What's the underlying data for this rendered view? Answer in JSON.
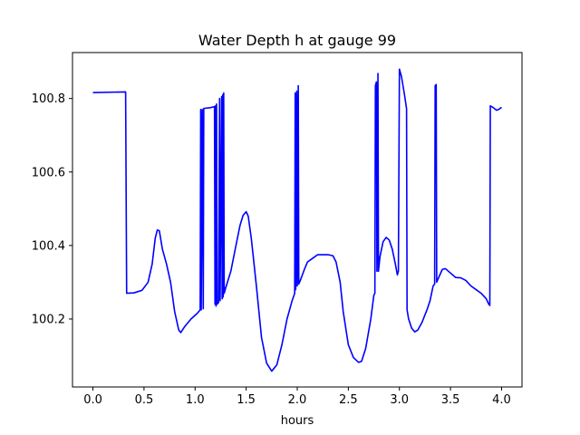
{
  "chart_data": {
    "type": "line",
    "title": "Water Depth h at gauge 99",
    "xlabel": "hours",
    "ylabel": "",
    "xlim": [
      -0.2,
      4.2
    ],
    "ylim": [
      100.015,
      100.925
    ],
    "grid": false,
    "xticks": [
      0.0,
      0.5,
      1.0,
      1.5,
      2.0,
      2.5,
      3.0,
      3.5,
      4.0
    ],
    "xtick_labels": [
      "0.0",
      "0.5",
      "1.0",
      "1.5",
      "2.0",
      "2.5",
      "3.0",
      "3.5",
      "4.0"
    ],
    "yticks": [
      100.2,
      100.4,
      100.6,
      100.8
    ],
    "ytick_labels": [
      "100.2",
      "100.4",
      "100.6",
      "100.8"
    ],
    "line_color": "#0000ff",
    "series": [
      {
        "points": [
          [
            0.0,
            100.816
          ],
          [
            0.32,
            100.818
          ],
          [
            0.32,
            100.818
          ],
          [
            0.33,
            100.27
          ],
          [
            0.4,
            100.271
          ],
          [
            0.48,
            100.278
          ],
          [
            0.54,
            100.3
          ],
          [
            0.58,
            100.35
          ],
          [
            0.61,
            100.42
          ],
          [
            0.63,
            100.442
          ],
          [
            0.65,
            100.44
          ],
          [
            0.68,
            100.39
          ],
          [
            0.72,
            100.35
          ],
          [
            0.76,
            100.3
          ],
          [
            0.8,
            100.22
          ],
          [
            0.84,
            100.17
          ],
          [
            0.86,
            100.163
          ],
          [
            0.9,
            100.18
          ],
          [
            0.96,
            100.2
          ],
          [
            1.02,
            100.215
          ],
          [
            1.05,
            100.225
          ],
          [
            1.055,
            100.77
          ],
          [
            1.06,
            100.225
          ],
          [
            1.07,
            100.77
          ],
          [
            1.08,
            100.228
          ],
          [
            1.085,
            100.773
          ],
          [
            1.15,
            100.775
          ],
          [
            1.19,
            100.778
          ],
          [
            1.195,
            100.24
          ],
          [
            1.2,
            100.78
          ],
          [
            1.205,
            100.235
          ],
          [
            1.21,
            100.785
          ],
          [
            1.215,
            100.24
          ],
          [
            1.23,
            100.245
          ],
          [
            1.24,
            100.8
          ],
          [
            1.245,
            100.25
          ],
          [
            1.26,
            100.805
          ],
          [
            1.265,
            100.255
          ],
          [
            1.27,
            100.81
          ],
          [
            1.275,
            100.26
          ],
          [
            1.28,
            100.815
          ],
          [
            1.285,
            100.27
          ],
          [
            1.3,
            100.285
          ],
          [
            1.35,
            100.33
          ],
          [
            1.4,
            100.4
          ],
          [
            1.44,
            100.455
          ],
          [
            1.47,
            100.482
          ],
          [
            1.5,
            100.492
          ],
          [
            1.52,
            100.48
          ],
          [
            1.55,
            100.42
          ],
          [
            1.6,
            100.29
          ],
          [
            1.65,
            100.15
          ],
          [
            1.7,
            100.08
          ],
          [
            1.75,
            100.058
          ],
          [
            1.8,
            100.075
          ],
          [
            1.85,
            100.13
          ],
          [
            1.9,
            100.2
          ],
          [
            1.95,
            100.25
          ],
          [
            1.975,
            100.27
          ],
          [
            1.98,
            100.815
          ],
          [
            1.985,
            100.28
          ],
          [
            1.995,
            100.82
          ],
          [
            2.0,
            100.29
          ],
          [
            2.01,
            100.835
          ],
          [
            2.015,
            100.295
          ],
          [
            2.03,
            100.305
          ],
          [
            2.07,
            100.335
          ],
          [
            2.1,
            100.355
          ],
          [
            2.15,
            100.365
          ],
          [
            2.2,
            100.375
          ],
          [
            2.3,
            100.375
          ],
          [
            2.35,
            100.372
          ],
          [
            2.38,
            100.355
          ],
          [
            2.42,
            100.3
          ],
          [
            2.45,
            100.22
          ],
          [
            2.5,
            100.13
          ],
          [
            2.55,
            100.095
          ],
          [
            2.6,
            100.082
          ],
          [
            2.63,
            100.085
          ],
          [
            2.67,
            100.12
          ],
          [
            2.72,
            100.2
          ],
          [
            2.75,
            100.265
          ],
          [
            2.76,
            100.27
          ],
          [
            2.765,
            100.835
          ],
          [
            2.775,
            100.845
          ],
          [
            2.78,
            100.33
          ],
          [
            2.79,
            100.868
          ],
          [
            2.795,
            100.33
          ],
          [
            2.81,
            100.37
          ],
          [
            2.84,
            100.41
          ],
          [
            2.87,
            100.422
          ],
          [
            2.9,
            100.415
          ],
          [
            2.93,
            100.39
          ],
          [
            2.96,
            100.35
          ],
          [
            2.98,
            100.32
          ],
          [
            2.99,
            100.33
          ],
          [
            3.0,
            100.88
          ],
          [
            3.02,
            100.86
          ],
          [
            3.05,
            100.81
          ],
          [
            3.07,
            100.772
          ],
          [
            3.075,
            100.225
          ],
          [
            3.09,
            100.2
          ],
          [
            3.12,
            100.175
          ],
          [
            3.15,
            100.165
          ],
          [
            3.18,
            100.17
          ],
          [
            3.22,
            100.19
          ],
          [
            3.27,
            100.225
          ],
          [
            3.3,
            100.25
          ],
          [
            3.33,
            100.29
          ],
          [
            3.345,
            100.295
          ],
          [
            3.35,
            100.835
          ],
          [
            3.36,
            100.838
          ],
          [
            3.365,
            100.3
          ],
          [
            3.38,
            100.31
          ],
          [
            3.42,
            100.335
          ],
          [
            3.45,
            100.337
          ],
          [
            3.5,
            100.325
          ],
          [
            3.55,
            100.313
          ],
          [
            3.6,
            100.312
          ],
          [
            3.65,
            100.305
          ],
          [
            3.7,
            100.29
          ],
          [
            3.75,
            100.28
          ],
          [
            3.8,
            100.27
          ],
          [
            3.85,
            100.255
          ],
          [
            3.875,
            100.24
          ],
          [
            3.885,
            100.237
          ],
          [
            3.89,
            100.78
          ],
          [
            3.92,
            100.775
          ],
          [
            3.95,
            100.768
          ],
          [
            3.97,
            100.77
          ],
          [
            4.0,
            100.776
          ]
        ]
      }
    ]
  }
}
